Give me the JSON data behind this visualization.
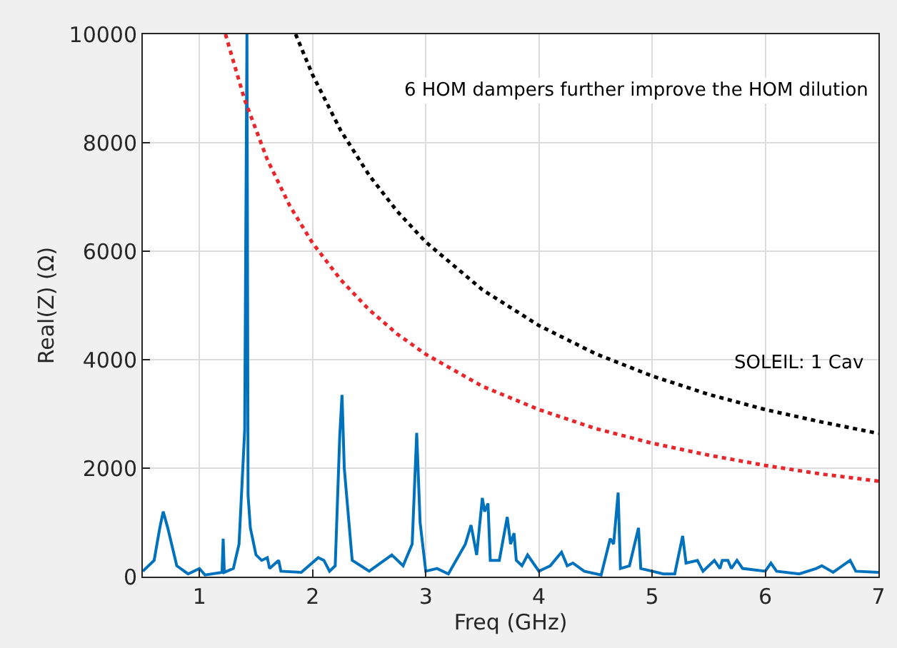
{
  "chart_data": {
    "type": "line",
    "xlabel": "Freq (GHz)",
    "ylabel": "Real(Z) (Ω)",
    "annotations": [
      "6 HOM dampers further improve the HOM dilution"
    ],
    "xlim": [
      0.5,
      7
    ],
    "xticks": [
      1,
      2,
      3,
      4,
      5,
      6,
      7
    ],
    "ylim": [
      0,
      10000
    ],
    "yticks": [
      0,
      2000,
      4000,
      6000,
      8000,
      10000
    ],
    "grid": true,
    "legend": false,
    "series": [
      {
        "color": "#0072bd",
        "line_style": "solid",
        "x": [
          0.5,
          0.6,
          0.65,
          0.68,
          0.72,
          0.8,
          0.9,
          1.0,
          1.05,
          1.2,
          1.21,
          1.22,
          1.3,
          1.35,
          1.4,
          1.42,
          1.43,
          1.45,
          1.5,
          1.55,
          1.6,
          1.62,
          1.7,
          1.72,
          1.9,
          2.05,
          2.1,
          2.15,
          2.2,
          2.24,
          2.26,
          2.28,
          2.35,
          2.5,
          2.7,
          2.8,
          2.88,
          2.92,
          2.95,
          3.0,
          3.1,
          3.2,
          3.35,
          3.4,
          3.45,
          3.5,
          3.52,
          3.55,
          3.57,
          3.65,
          3.72,
          3.75,
          3.78,
          3.8,
          3.85,
          3.9,
          4.0,
          4.1,
          4.2,
          4.25,
          4.3,
          4.4,
          4.55,
          4.63,
          4.66,
          4.7,
          4.72,
          4.8,
          4.88,
          4.9,
          5.0,
          5.1,
          5.2,
          5.27,
          5.3,
          5.4,
          5.45,
          5.55,
          5.6,
          5.62,
          5.67,
          5.7,
          5.75,
          5.8,
          6.0,
          6.05,
          6.1,
          6.3,
          6.45,
          6.5,
          6.6,
          6.75,
          6.8,
          7.0
        ],
        "values": [
          100,
          300,
          900,
          1200,
          900,
          200,
          50,
          150,
          30,
          80,
          700,
          80,
          150,
          600,
          2700,
          10000,
          1500,
          900,
          400,
          300,
          350,
          150,
          300,
          100,
          80,
          350,
          300,
          100,
          200,
          2600,
          3350,
          2000,
          300,
          100,
          400,
          200,
          600,
          2650,
          1000,
          100,
          150,
          50,
          600,
          950,
          400,
          1450,
          1200,
          1350,
          300,
          300,
          1100,
          600,
          800,
          300,
          200,
          400,
          100,
          200,
          450,
          200,
          250,
          100,
          30,
          700,
          600,
          1550,
          150,
          200,
          900,
          150,
          100,
          50,
          50,
          750,
          250,
          300,
          100,
          300,
          150,
          300,
          300,
          150,
          300,
          150,
          100,
          250,
          100,
          50,
          150,
          200,
          80,
          300,
          100,
          80
        ]
      },
      {
        "name": "SOLEIL: 1 Cav",
        "color": "#000000",
        "line_style": "dotted",
        "x": [
          1.85,
          2,
          2.25,
          2.5,
          2.75,
          3,
          3.5,
          4,
          4.5,
          5,
          5.5,
          6,
          6.5,
          7
        ],
        "values": [
          10000,
          9250,
          8220,
          7400,
          6730,
          6170,
          5290,
          4630,
          4110,
          3700,
          3360,
          3080,
          2850,
          2640
        ]
      },
      {
        "color": "#e8262b",
        "line_style": "dotted",
        "x": [
          1.23,
          1.4,
          1.6,
          1.8,
          2,
          2.25,
          2.5,
          2.75,
          3,
          3.5,
          4,
          4.5,
          5,
          5.5,
          6,
          6.5,
          7
        ],
        "values": [
          10000,
          8790,
          7690,
          6830,
          6150,
          5470,
          4920,
          4470,
          4100,
          3510,
          3080,
          2730,
          2460,
          2240,
          2050,
          1890,
          1760
        ]
      }
    ]
  }
}
